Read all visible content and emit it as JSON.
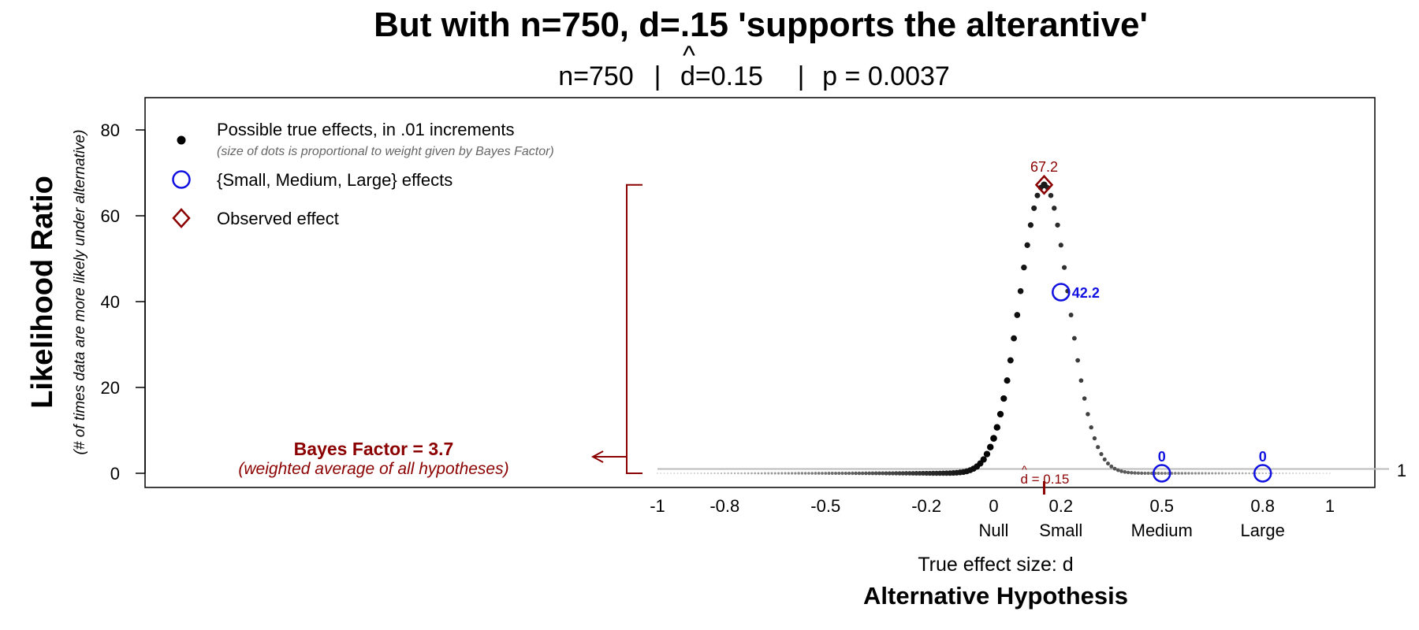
{
  "title": "But with n=750, d=.15 'supports the alterantive'",
  "subtitle": {
    "n": "n=750",
    "sep1": "|",
    "dhat_hat": "^",
    "dhat": "d=0.15",
    "sep2": "|",
    "p": "p = 0.0037"
  },
  "y_axis": {
    "label": "Likelihood Ratio",
    "sublabel": "(# of times data are more likely under alternative)"
  },
  "x_axis": {
    "label": "True effect size: d",
    "title": "Alternative Hypothesis"
  },
  "legend": {
    "dots": "Possible true effects, in .01 increments",
    "dots_note": "(size of dots is proportional to weight given by Bayes Factor)",
    "circles": "{Small, Medium, Large} effects",
    "diamond": "Observed effect"
  },
  "bayes_factor": {
    "label": "Bayes Factor = 3.7",
    "note": "(weighted average of all hypotheses)"
  },
  "annotations": {
    "peak_label": "67.2",
    "small_label": "42.2",
    "medium_label": "0",
    "large_label": "0",
    "baseline_label": "1",
    "dhat_marker_hat": "^",
    "dhat_marker": "d = 0.15"
  },
  "colors": {
    "blue": "#1010e0",
    "darkred": "#8b0000",
    "dots": "#000000",
    "baseline": "#bbbbbb"
  },
  "chart_data": {
    "type": "scatter",
    "title": "But with n=750, d=.15 'supports the alterantive'",
    "xlabel": "True effect size: d",
    "ylabel": "Likelihood Ratio",
    "xlim": [
      -1,
      1
    ],
    "ylim": [
      0,
      85
    ],
    "x_ticks": [
      {
        "value": -1,
        "label": "-1",
        "sub": ""
      },
      {
        "value": -0.8,
        "label": "-0.8",
        "sub": ""
      },
      {
        "value": -0.5,
        "label": "-0.5",
        "sub": ""
      },
      {
        "value": -0.2,
        "label": "-0.2",
        "sub": ""
      },
      {
        "value": 0,
        "label": "0",
        "sub": "Null"
      },
      {
        "value": 0.2,
        "label": "0.2",
        "sub": "Small"
      },
      {
        "value": 0.5,
        "label": "0.5",
        "sub": "Medium"
      },
      {
        "value": 0.8,
        "label": "0.8",
        "sub": "Large"
      },
      {
        "value": 1,
        "label": "1",
        "sub": ""
      }
    ],
    "y_ticks": [
      0,
      20,
      40,
      60,
      80
    ],
    "observed_effect": {
      "d": 0.15,
      "lr": 67.2
    },
    "effect_points": [
      {
        "name": "Small",
        "d": 0.2,
        "lr": 42.2
      },
      {
        "name": "Medium",
        "d": 0.5,
        "lr": 0
      },
      {
        "name": "Large",
        "d": 0.8,
        "lr": 0
      }
    ],
    "likelihood_curve": {
      "n": 750,
      "d_observed": 0.15,
      "peak": 67.2,
      "step": 0.01
    },
    "bayes_factor": 3.7,
    "baseline": 1,
    "grid": false,
    "legend_position": "top-left"
  }
}
